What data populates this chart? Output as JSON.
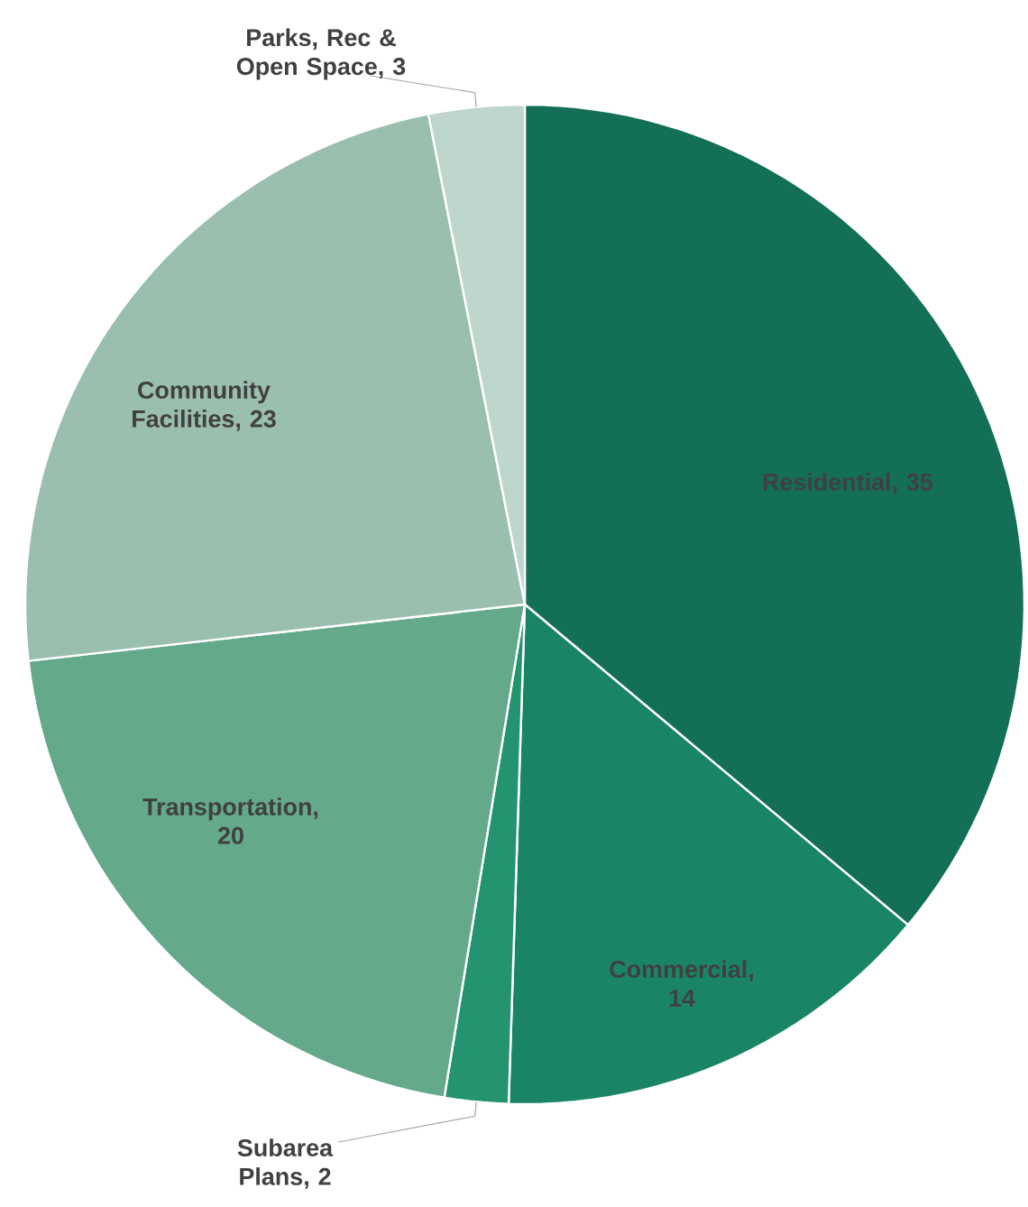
{
  "chart_data": {
    "type": "pie",
    "categories": [
      "Residential",
      "Commercial",
      "Subarea Plans",
      "Transportation",
      "Community Facilities",
      "Parks, Rec & Open Space"
    ],
    "values": [
      35,
      14,
      2,
      20,
      23,
      3
    ],
    "colors": [
      "#136f55",
      "#1a8565",
      "#23946f",
      "#63a98a",
      "#9abfae",
      "#bfd6cc"
    ],
    "value_labels": [
      ", 35",
      ", 14",
      ", 2",
      ", 20",
      ", 23",
      ", 3"
    ]
  }
}
